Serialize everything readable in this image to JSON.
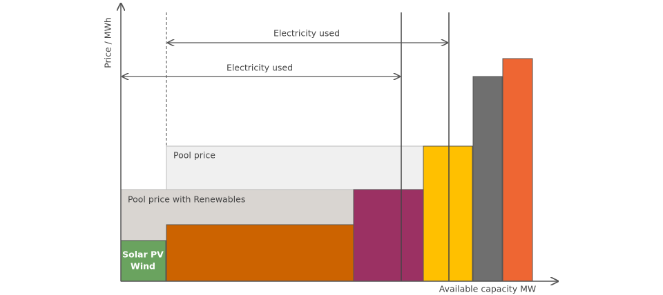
{
  "axes": {
    "y_label": "Price / MWh",
    "x_label": "Available capacity MW"
  },
  "arrows": [
    {
      "label": "Electricity used"
    },
    {
      "label": "Electricity used"
    }
  ],
  "regions": {
    "pool_price": "Pool price",
    "pool_price_renewables": "Pool price with Renewables"
  },
  "bars": {
    "renewables": [
      "Solar PV",
      "Wind"
    ]
  }
}
